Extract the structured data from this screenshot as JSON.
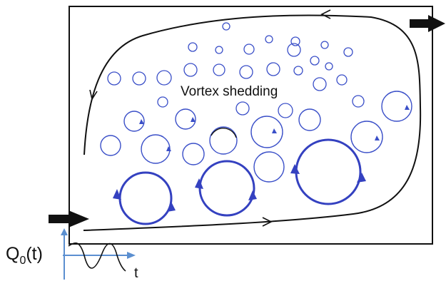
{
  "figure": {
    "center_label": "Vortex shedding",
    "source_label_main": "Q",
    "source_label_sub": "0",
    "source_label_arg": "(t)",
    "time_axis_label": "t"
  },
  "colors": {
    "background": "#ffffff",
    "frame": "#111111",
    "streamline": "#111111",
    "vortex": "#3a4fc8",
    "vortex_large": "#3441c0",
    "axis": "#5b8fd0",
    "wave": "#111111"
  },
  "icons": {
    "inlet_arrow": "right-arrow",
    "outlet_arrow": "right-arrow"
  }
}
